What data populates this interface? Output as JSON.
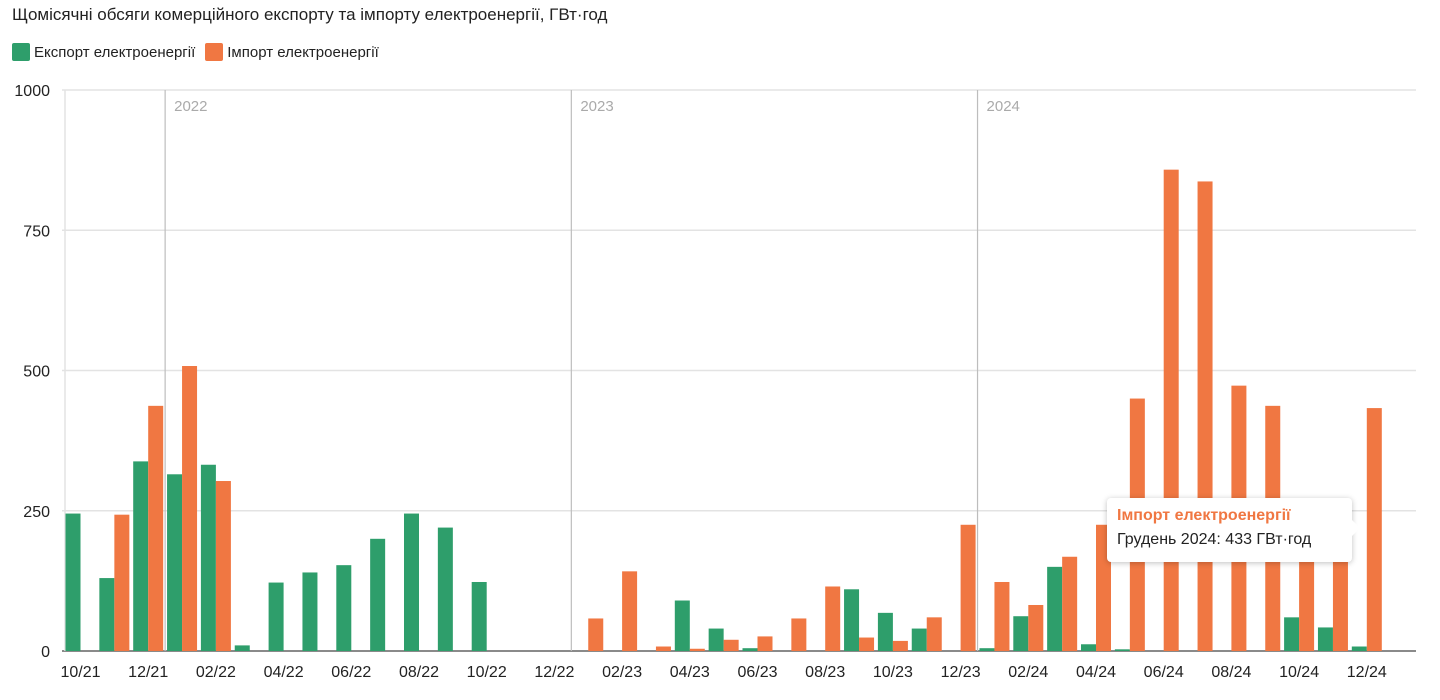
{
  "chart_data": {
    "type": "bar",
    "title": "Щомісячні обсяги комерційного експорту та імпорту електроенергії, ГВт·год",
    "legend_position": "top-left",
    "ylim": [
      0,
      1000
    ],
    "yticks": [
      0,
      250,
      500,
      750,
      1000
    ],
    "grid": true,
    "categories": [
      "10/21",
      "11/21",
      "12/21",
      "01/22",
      "02/22",
      "03/22",
      "04/22",
      "05/22",
      "06/22",
      "07/22",
      "08/22",
      "09/22",
      "10/22",
      "11/22",
      "12/22",
      "01/23",
      "02/23",
      "03/23",
      "04/23",
      "05/23",
      "06/23",
      "07/23",
      "08/23",
      "09/23",
      "10/23",
      "11/23",
      "12/23",
      "01/24",
      "02/24",
      "03/24",
      "04/24",
      "05/24",
      "06/24",
      "07/24",
      "08/24",
      "09/24",
      "10/24",
      "11/24",
      "12/24"
    ],
    "x_tick_labels": [
      "10/21",
      "12/21",
      "02/22",
      "04/22",
      "06/22",
      "08/22",
      "10/22",
      "12/22",
      "02/23",
      "04/23",
      "06/23",
      "08/23",
      "10/23",
      "12/23",
      "02/24",
      "04/24",
      "06/24",
      "08/24",
      "10/24",
      "12/24"
    ],
    "year_markers": [
      {
        "label": "2022",
        "before_category": "01/22"
      },
      {
        "label": "2023",
        "before_category": "01/23"
      },
      {
        "label": "2024",
        "before_category": "01/24"
      }
    ],
    "series": [
      {
        "name": "Експорт електроенергії",
        "color": "#2e9e6b",
        "values": [
          245,
          130,
          338,
          315,
          332,
          10,
          122,
          140,
          153,
          200,
          245,
          220,
          123,
          0,
          0,
          0,
          0,
          0,
          90,
          40,
          5,
          0,
          0,
          110,
          68,
          40,
          0,
          5,
          62,
          150,
          12,
          3,
          0,
          0,
          0,
          0,
          60,
          42,
          8
        ]
      },
      {
        "name": "Імпорт електроенергії",
        "color": "#f07742",
        "values": [
          0,
          243,
          437,
          508,
          303,
          0,
          0,
          0,
          0,
          0,
          0,
          0,
          0,
          0,
          0,
          58,
          142,
          8,
          4,
          20,
          26,
          58,
          115,
          24,
          18,
          60,
          225,
          123,
          82,
          168,
          225,
          450,
          858,
          837,
          473,
          437,
          168,
          168,
          433
        ]
      }
    ]
  },
  "tooltip": {
    "series_name": "Імпорт електроенергії",
    "text": "Грудень 2024: 433 ГВт·год"
  }
}
